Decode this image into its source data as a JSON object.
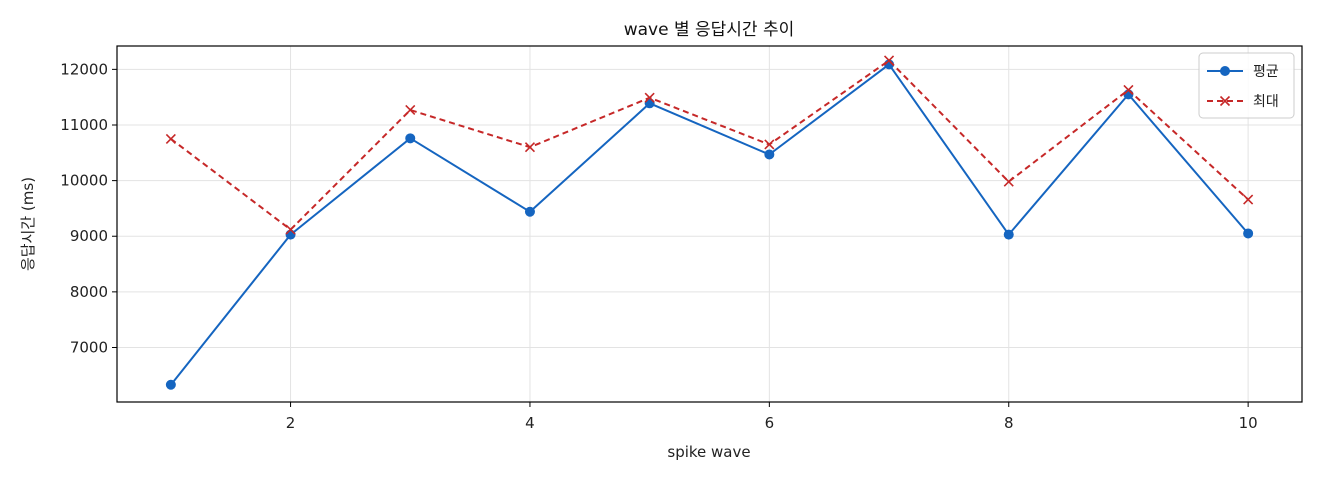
{
  "chart_data": {
    "type": "line",
    "title": "wave 별 응답시간 추이",
    "xlabel": "spike wave",
    "ylabel": "응답시간 (ms)",
    "x": [
      1,
      2,
      3,
      4,
      5,
      6,
      7,
      8,
      9,
      10
    ],
    "x_ticks": [
      2,
      4,
      6,
      8,
      10
    ],
    "y_ticks": [
      7000,
      8000,
      9000,
      10000,
      11000,
      12000
    ],
    "xlim": [
      0.55,
      10.45
    ],
    "ylim": [
      6020,
      12420
    ],
    "grid": true,
    "legend_position": "top-right",
    "series": [
      {
        "name": "평균",
        "color": "#1565c0",
        "line_style": "solid",
        "marker": "circle",
        "values": [
          6330,
          9030,
          10760,
          9440,
          11390,
          10470,
          12090,
          9030,
          11550,
          9050
        ]
      },
      {
        "name": "최대",
        "color": "#c62828",
        "line_style": "dashed",
        "marker": "x",
        "values": [
          10750,
          9120,
          11270,
          10600,
          11490,
          10650,
          12160,
          9980,
          11630,
          9660
        ]
      }
    ]
  }
}
